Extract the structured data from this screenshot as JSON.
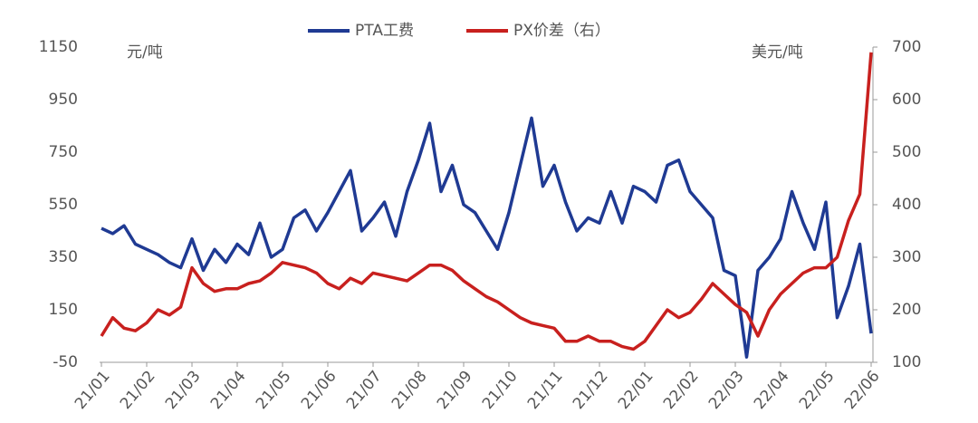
{
  "chart_data": {
    "type": "line",
    "y_unit": "元/吨",
    "y2_unit": "美元/吨",
    "legend": "top",
    "categories": [
      "21/01",
      null,
      null,
      null,
      "21/02",
      null,
      null,
      null,
      "21/03",
      null,
      null,
      null,
      "21/04",
      null,
      null,
      null,
      "21/05",
      null,
      null,
      null,
      "21/06",
      null,
      null,
      null,
      "21/07",
      null,
      null,
      null,
      "21/08",
      null,
      null,
      null,
      "21/09",
      null,
      null,
      null,
      "21/10",
      null,
      null,
      null,
      "21/11",
      null,
      null,
      null,
      "21/12",
      null,
      null,
      null,
      "22/01",
      null,
      null,
      null,
      "22/02",
      null,
      null,
      null,
      "22/03",
      null,
      null,
      null,
      "22/04",
      null,
      null,
      null,
      "22/05",
      null,
      null,
      null,
      "22/06"
    ],
    "series": [
      {
        "name": "PTA工费",
        "color": "#1f3a93",
        "values": [
          460,
          440,
          470,
          400,
          380,
          360,
          330,
          310,
          420,
          300,
          380,
          330,
          400,
          360,
          480,
          350,
          380,
          500,
          530,
          450,
          520,
          600,
          680,
          450,
          500,
          560,
          430,
          600,
          720,
          860,
          600,
          700,
          550,
          520,
          450,
          380,
          520,
          700,
          880,
          620,
          700,
          560,
          450,
          500,
          480,
          600,
          480,
          620,
          600,
          560,
          700,
          720,
          600,
          550,
          500,
          300,
          280,
          -30,
          300,
          350,
          420,
          600,
          480,
          380,
          560,
          120,
          240,
          400,
          60
        ]
      },
      {
        "name": "PX价差（右）",
        "color": "#c8201e",
        "axis": "y2",
        "values": [
          150,
          185,
          165,
          160,
          175,
          200,
          190,
          205,
          280,
          250,
          235,
          240,
          240,
          250,
          255,
          270,
          290,
          285,
          280,
          270,
          250,
          240,
          260,
          250,
          270,
          265,
          260,
          255,
          270,
          285,
          285,
          275,
          255,
          240,
          225,
          215,
          200,
          185,
          175,
          170,
          165,
          140,
          140,
          150,
          140,
          140,
          130,
          125,
          140,
          170,
          200,
          185,
          195,
          220,
          250,
          230,
          210,
          195,
          150,
          200,
          230,
          250,
          270,
          280,
          280,
          300,
          370,
          420,
          690
        ]
      }
    ],
    "ylim": [
      -50,
      1150
    ],
    "yticks": [
      -50,
      150,
      350,
      550,
      750,
      950,
      1150
    ],
    "y2lim": [
      100,
      700
    ],
    "y2ticks": [
      100,
      200,
      300,
      400,
      500,
      600,
      700
    ]
  }
}
